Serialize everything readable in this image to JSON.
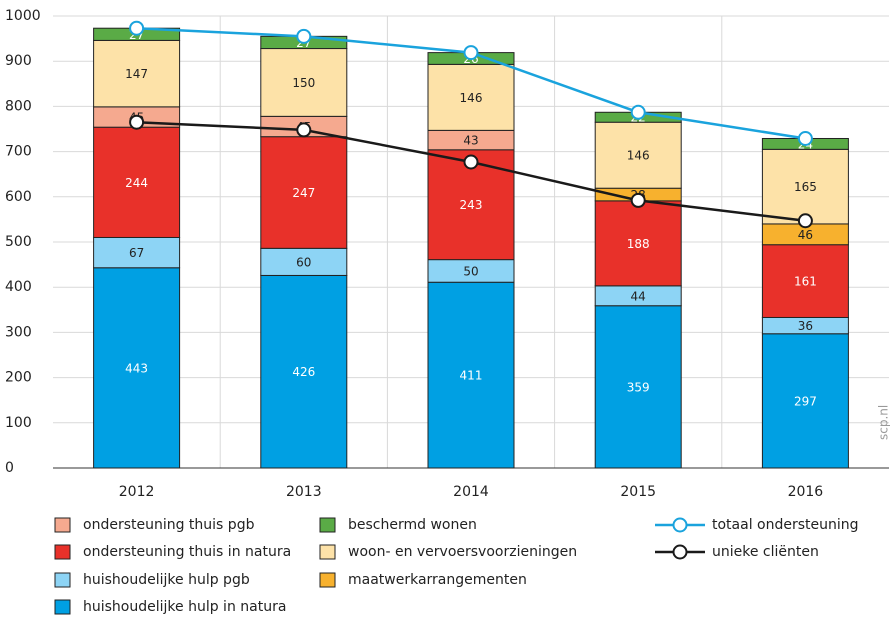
{
  "chart_data": {
    "type": "bar",
    "stacked": true,
    "categories": [
      "2012",
      "2013",
      "2014",
      "2015",
      "2016"
    ],
    "series": [
      {
        "name": "huishoudelijke hulp in natura",
        "color": "#00a0e3",
        "label_color": "#ffffff",
        "values": [
          443,
          426,
          411,
          359,
          297
        ]
      },
      {
        "name": "huishoudelijke hulp pgb",
        "color": "#8dd4f5",
        "label_color": "#222222",
        "values": [
          67,
          60,
          50,
          44,
          36
        ]
      },
      {
        "name": "ondersteuning thuis in natura",
        "color": "#e8312a",
        "label_color": "#ffffff",
        "values": [
          244,
          247,
          243,
          188,
          161
        ]
      },
      {
        "name": "maatwerkarrangementen",
        "color": "#f7b12e",
        "label_color": "#222222",
        "values": [
          null,
          null,
          null,
          28,
          46
        ]
      },
      {
        "name": "ondersteuning thuis pgb",
        "color": "#f5a98f",
        "label_color": "#222222",
        "values": [
          45,
          45,
          43,
          null,
          null
        ]
      },
      {
        "name": "woon- en vervoersvoorzieningen",
        "color": "#fde2a8",
        "label_color": "#222222",
        "values": [
          147,
          150,
          146,
          146,
          165
        ]
      },
      {
        "name": "beschermd wonen",
        "color": "#5aab46",
        "label_color": "#ffffff",
        "values": [
          27,
          27,
          26,
          22,
          24
        ]
      }
    ],
    "lines": [
      {
        "name": "totaal ondersteuning",
        "color": "#1aa3dd",
        "values": [
          973,
          955,
          919,
          787,
          729
        ]
      },
      {
        "name": "unieke cliënten",
        "color": "#1a1a1a",
        "values": [
          765,
          748,
          677,
          592,
          547
        ]
      }
    ],
    "ylim": [
      0,
      1000
    ],
    "yticks": [
      0,
      100,
      200,
      300,
      400,
      500,
      600,
      700,
      800,
      900,
      1000
    ],
    "grid": true,
    "source": "scp.nl"
  }
}
